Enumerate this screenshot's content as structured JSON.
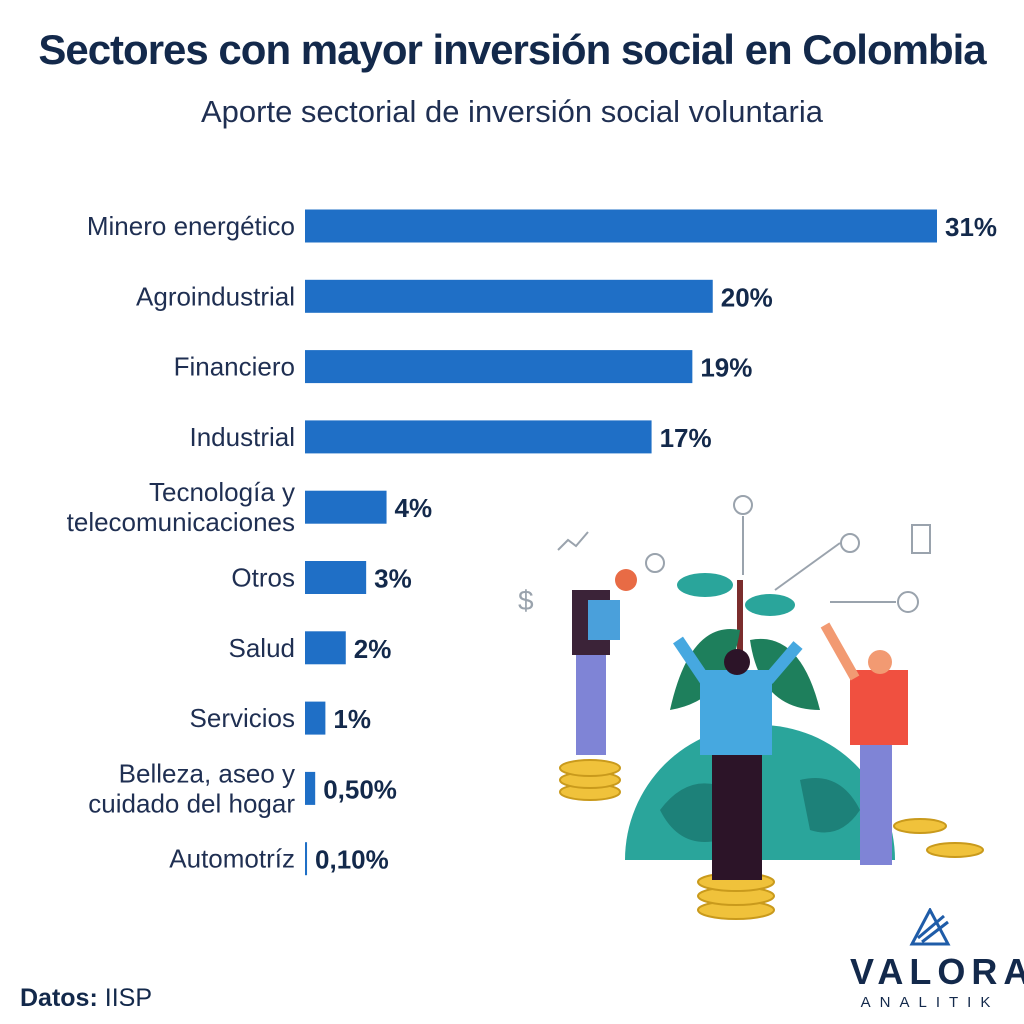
{
  "header": {
    "title": "Sectores con mayor inversión social en Colombia",
    "subtitle": "Aporte sectorial de inversión social voluntaria"
  },
  "footer": {
    "source_label": "Datos:",
    "source_value": "IISP",
    "brand_name": "VALORA",
    "brand_sub": "ANALITIK"
  },
  "colors": {
    "bar": "#1f6fc6",
    "title": "#13294b"
  },
  "chart_data": {
    "type": "bar",
    "orientation": "horizontal",
    "title": "Sectores con mayor inversión social en Colombia",
    "subtitle": "Aporte sectorial de inversión social voluntaria",
    "categories": [
      "Minero energético",
      "Agroindustrial",
      "Financiero",
      "Industrial",
      "Tecnología y\ntelecomunicaciones",
      "Otros",
      "Salud",
      "Servicios",
      "Belleza, aseo y\ncuidado del hogar",
      "Automotríz"
    ],
    "values": [
      31,
      20,
      19,
      17,
      4,
      3,
      2,
      1,
      0.5,
      0.1
    ],
    "value_labels": [
      "31%",
      "20%",
      "19%",
      "17%",
      "4%",
      "3%",
      "2%",
      "1%",
      "0,50%",
      "0,10%"
    ],
    "xlim": [
      0,
      31
    ],
    "grid": false,
    "legend": "none"
  }
}
